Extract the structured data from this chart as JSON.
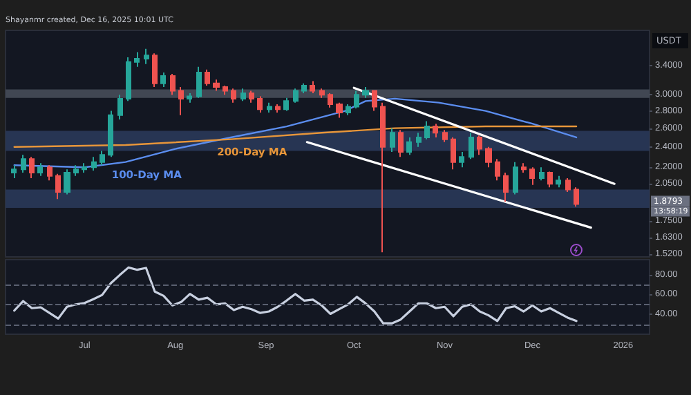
{
  "chart_data": [
    {
      "type": "candlestick",
      "title": "Shayanmr created, Dec 16, 2025 10:01 UTC",
      "ylabel": "USDT",
      "log": "y",
      "grid": false,
      "tick_labels": "y",
      "xlim": [
        "2025-06-04",
        "2026-01-10"
      ],
      "ylim": [
        1.5,
        3.95
      ],
      "yticks": [
        {
          "value": 3.4,
          "label": "3.4000"
        },
        {
          "value": 3.0,
          "label": "3.0000"
        },
        {
          "value": 2.8,
          "label": "2.8000"
        },
        {
          "value": 2.6,
          "label": "2.6000"
        },
        {
          "value": 2.4,
          "label": "2.4000"
        },
        {
          "value": 2.2,
          "label": "2.2000"
        },
        {
          "value": 2.05,
          "label": "2.0500"
        },
        {
          "value": 1.75,
          "label": "1.7500"
        },
        {
          "value": 1.63,
          "label": "1.6300"
        },
        {
          "value": 1.52,
          "label": "1.5200"
        }
      ],
      "x": [
        "2025-06-07",
        "2025-06-10",
        "2025-06-13",
        "2025-06-16",
        "2025-06-19",
        "2025-06-22",
        "2025-06-25",
        "2025-06-28",
        "2025-07-01",
        "2025-07-04",
        "2025-07-07",
        "2025-07-10",
        "2025-07-13",
        "2025-07-16",
        "2025-07-19",
        "2025-07-22",
        "2025-07-25",
        "2025-07-28",
        "2025-07-31",
        "2025-08-03",
        "2025-08-06",
        "2025-08-09",
        "2025-08-12",
        "2025-08-15",
        "2025-08-18",
        "2025-08-21",
        "2025-08-24",
        "2025-08-27",
        "2025-08-30",
        "2025-09-02",
        "2025-09-05",
        "2025-09-08",
        "2025-09-11",
        "2025-09-14",
        "2025-09-17",
        "2025-09-20",
        "2025-09-23",
        "2025-09-26",
        "2025-09-29",
        "2025-10-02",
        "2025-10-05",
        "2025-10-08",
        "2025-10-11",
        "2025-10-14",
        "2025-10-17",
        "2025-10-20",
        "2025-10-23",
        "2025-10-26",
        "2025-10-29",
        "2025-11-01",
        "2025-11-04",
        "2025-11-07",
        "2025-11-10",
        "2025-11-13",
        "2025-11-16",
        "2025-11-19",
        "2025-11-22",
        "2025-11-25",
        "2025-11-28",
        "2025-12-01",
        "2025-12-04",
        "2025-12-07",
        "2025-12-10",
        "2025-12-13",
        "2025-12-16"
      ],
      "ohlc": [
        [
          2.15,
          2.22,
          2.1,
          2.18
        ],
        [
          2.18,
          2.32,
          2.15,
          2.28
        ],
        [
          2.28,
          2.3,
          2.1,
          2.15
        ],
        [
          2.15,
          2.24,
          2.12,
          2.2
        ],
        [
          2.2,
          2.22,
          2.08,
          2.12
        ],
        [
          2.12,
          2.14,
          1.92,
          1.98
        ],
        [
          1.98,
          2.18,
          1.96,
          2.15
        ],
        [
          2.15,
          2.22,
          2.12,
          2.18
        ],
        [
          2.18,
          2.24,
          2.15,
          2.2
        ],
        [
          2.2,
          2.3,
          2.17,
          2.25
        ],
        [
          2.25,
          2.36,
          2.22,
          2.32
        ],
        [
          2.32,
          2.8,
          2.3,
          2.75
        ],
        [
          2.75,
          3.0,
          2.7,
          2.95
        ],
        [
          2.95,
          3.52,
          2.92,
          3.45
        ],
        [
          3.45,
          3.6,
          3.38,
          3.5
        ],
        [
          3.5,
          3.65,
          3.42,
          3.55
        ],
        [
          3.55,
          3.58,
          3.1,
          3.15
        ],
        [
          3.15,
          3.3,
          3.1,
          3.25
        ],
        [
          3.25,
          3.28,
          3.0,
          3.05
        ],
        [
          3.05,
          3.1,
          2.75,
          2.95
        ],
        [
          2.95,
          3.02,
          2.9,
          2.98
        ],
        [
          2.98,
          3.38,
          2.96,
          3.3
        ],
        [
          3.3,
          3.34,
          3.12,
          3.15
        ],
        [
          3.15,
          3.2,
          3.05,
          3.1
        ],
        [
          3.1,
          3.12,
          3.0,
          3.05
        ],
        [
          3.05,
          3.08,
          2.9,
          2.95
        ],
        [
          2.95,
          3.08,
          2.92,
          3.02
        ],
        [
          3.02,
          3.05,
          2.9,
          2.95
        ],
        [
          2.95,
          2.98,
          2.78,
          2.82
        ],
        [
          2.82,
          2.9,
          2.78,
          2.85
        ],
        [
          2.85,
          2.88,
          2.78,
          2.82
        ],
        [
          2.82,
          2.96,
          2.8,
          2.92
        ],
        [
          2.92,
          3.08,
          2.9,
          3.05
        ],
        [
          3.05,
          3.15,
          3.02,
          3.12
        ],
        [
          3.12,
          3.18,
          3.02,
          3.05
        ],
        [
          3.05,
          3.08,
          2.96,
          3.0
        ],
        [
          3.0,
          3.02,
          2.84,
          2.88
        ],
        [
          2.88,
          2.9,
          2.72,
          2.78
        ],
        [
          2.78,
          2.88,
          2.75,
          2.85
        ],
        [
          2.85,
          3.05,
          2.83,
          3.0
        ],
        [
          3.0,
          3.1,
          2.96,
          3.05
        ],
        [
          3.05,
          3.06,
          2.8,
          2.85
        ],
        [
          2.85,
          2.9,
          1.53,
          2.4
        ],
        [
          2.4,
          2.6,
          2.35,
          2.55
        ],
        [
          2.55,
          2.58,
          2.3,
          2.35
        ],
        [
          2.35,
          2.5,
          2.32,
          2.45
        ],
        [
          2.45,
          2.55,
          2.4,
          2.5
        ],
        [
          2.5,
          2.68,
          2.48,
          2.62
        ],
        [
          2.62,
          2.65,
          2.5,
          2.55
        ],
        [
          2.55,
          2.58,
          2.45,
          2.48
        ],
        [
          2.48,
          2.5,
          2.18,
          2.25
        ],
        [
          2.25,
          2.35,
          2.2,
          2.3
        ],
        [
          2.3,
          2.55,
          2.28,
          2.5
        ],
        [
          2.5,
          2.52,
          2.32,
          2.38
        ],
        [
          2.38,
          2.4,
          2.2,
          2.25
        ],
        [
          2.25,
          2.28,
          2.08,
          2.12
        ],
        [
          2.12,
          2.15,
          1.9,
          1.98
        ],
        [
          1.98,
          2.25,
          1.96,
          2.2
        ],
        [
          2.2,
          2.24,
          2.15,
          2.18
        ],
        [
          2.18,
          2.2,
          2.04,
          2.1
        ],
        [
          2.1,
          2.2,
          2.08,
          2.15
        ],
        [
          2.15,
          2.16,
          2.02,
          2.05
        ],
        [
          2.05,
          2.12,
          2.02,
          2.08
        ],
        [
          2.08,
          2.1,
          1.98,
          2.0
        ],
        [
          2.0,
          2.02,
          1.86,
          1.88
        ]
      ],
      "colors": [
        "#26a69a",
        "#26a69a",
        "#ef5350",
        "#26a69a",
        "#ef5350",
        "#ef5350",
        "#26a69a",
        "#26a69a",
        "#26a69a",
        "#26a69a",
        "#26a69a",
        "#26a69a",
        "#26a69a",
        "#26a69a",
        "#26a69a",
        "#26a69a",
        "#ef5350",
        "#26a69a",
        "#ef5350",
        "#ef5350",
        "#26a69a",
        "#26a69a",
        "#ef5350",
        "#ef5350",
        "#ef5350",
        "#ef5350",
        "#26a69a",
        "#ef5350",
        "#ef5350",
        "#26a69a",
        "#ef5350",
        "#26a69a",
        "#26a69a",
        "#26a69a",
        "#ef5350",
        "#ef5350",
        "#ef5350",
        "#ef5350",
        "#26a69a",
        "#26a69a",
        "#26a69a",
        "#ef5350",
        "#ef5350",
        "#26a69a",
        "#ef5350",
        "#26a69a",
        "#26a69a",
        "#26a69a",
        "#ef5350",
        "#ef5350",
        "#ef5350",
        "#26a69a",
        "#26a69a",
        "#ef5350",
        "#ef5350",
        "#ef5350",
        "#ef5350",
        "#26a69a",
        "#ef5350",
        "#ef5350",
        "#26a69a",
        "#ef5350",
        "#26a69a",
        "#ef5350",
        "#ef5350"
      ],
      "series": [
        {
          "name": "100-Day MA",
          "type": "line",
          "color": "#5b8def",
          "x": [
            "2025-06-07",
            "2025-07-01",
            "2025-07-15",
            "2025-08-01",
            "2025-08-20",
            "2025-09-08",
            "2025-09-28",
            "2025-10-05",
            "2025-10-15",
            "2025-10-30",
            "2025-11-15",
            "2025-12-01",
            "2025-12-16"
          ],
          "values": [
            2.22,
            2.2,
            2.25,
            2.38,
            2.5,
            2.62,
            2.8,
            2.92,
            2.95,
            2.9,
            2.8,
            2.65,
            2.5
          ]
        },
        {
          "name": "200-Day MA",
          "type": "line",
          "color": "#e8963a",
          "x": [
            "2025-06-07",
            "2025-07-15",
            "2025-08-20",
            "2025-09-20",
            "2025-10-15",
            "2025-11-15",
            "2025-12-16"
          ],
          "values": [
            2.4,
            2.42,
            2.48,
            2.55,
            2.6,
            2.62,
            2.62
          ]
        },
        {
          "type": "line",
          "color": "#ffffff",
          "x": [
            "2025-10-01",
            "2025-12-29"
          ],
          "values": [
            3.09,
            2.05
          ]
        },
        {
          "type": "line",
          "color": "#ffffff",
          "x": [
            "2025-09-15",
            "2025-12-21"
          ],
          "values": [
            2.45,
            1.7
          ]
        }
      ],
      "bands": [
        {
          "axis": "y",
          "from": 2.96,
          "to": 3.07,
          "color": "#4a505c"
        },
        {
          "axis": "y",
          "from": 2.36,
          "to": 2.57,
          "color": "#2c3b5c"
        },
        {
          "axis": "y",
          "from": 1.85,
          "to": 2.0,
          "color": "#2c3b5c"
        }
      ],
      "annotations": [
        "1.8793",
        "13:58:19"
      ]
    },
    {
      "type": "line",
      "grid": false,
      "line_style": "solid",
      "xlim": [
        "2025-06-04",
        "2026-01-10"
      ],
      "ylim": [
        20,
        95
      ],
      "yticks": [
        {
          "value": 40,
          "label": "40.00"
        },
        {
          "value": 60,
          "label": "60.00"
        },
        {
          "value": 80,
          "label": "80.00"
        }
      ],
      "xticks": [
        {
          "value": "2025-07-01",
          "label": "Jul"
        },
        {
          "value": "2025-08-01",
          "label": "Aug"
        },
        {
          "value": "2025-09-01",
          "label": "Sep"
        },
        {
          "value": "2025-10-01",
          "label": "Oct"
        },
        {
          "value": "2025-11-01",
          "label": "Nov"
        },
        {
          "value": "2025-12-01",
          "label": "Dec"
        },
        {
          "value": "2026-01-01",
          "label": "2026"
        }
      ],
      "ref_lines": [
        {
          "axis": "y",
          "value": 70,
          "color": "#5a6070",
          "line_style": "dashed"
        },
        {
          "axis": "y",
          "value": 50,
          "color": "#5a6070",
          "line_style": "dashed"
        },
        {
          "axis": "y",
          "value": 30,
          "color": "#5a6070",
          "line_style": "dashed"
        }
      ],
      "x": [
        "2025-06-07",
        "2025-06-10",
        "2025-06-13",
        "2025-06-16",
        "2025-06-19",
        "2025-06-22",
        "2025-06-25",
        "2025-06-28",
        "2025-07-01",
        "2025-07-04",
        "2025-07-07",
        "2025-07-10",
        "2025-07-13",
        "2025-07-16",
        "2025-07-19",
        "2025-07-22",
        "2025-07-25",
        "2025-07-28",
        "2025-07-31",
        "2025-08-03",
        "2025-08-06",
        "2025-08-09",
        "2025-08-12",
        "2025-08-15",
        "2025-08-18",
        "2025-08-21",
        "2025-08-24",
        "2025-08-27",
        "2025-08-30",
        "2025-09-02",
        "2025-09-05",
        "2025-09-08",
        "2025-09-11",
        "2025-09-14",
        "2025-09-17",
        "2025-09-20",
        "2025-09-23",
        "2025-09-26",
        "2025-09-29",
        "2025-10-02",
        "2025-10-05",
        "2025-10-08",
        "2025-10-11",
        "2025-10-14",
        "2025-10-17",
        "2025-10-20",
        "2025-10-23",
        "2025-10-26",
        "2025-10-29",
        "2025-11-01",
        "2025-11-04",
        "2025-11-07",
        "2025-11-10",
        "2025-11-13",
        "2025-11-16",
        "2025-11-19",
        "2025-11-22",
        "2025-11-25",
        "2025-11-28",
        "2025-12-01",
        "2025-12-04",
        "2025-12-07",
        "2025-12-10",
        "2025-12-13",
        "2025-12-16"
      ],
      "series": [
        {
          "color": "#c8d0e0",
          "values": [
            43.8,
            53.3,
            46.2,
            47.1,
            41.4,
            35.7,
            47.6,
            50,
            51.4,
            55.2,
            59.5,
            71.4,
            79.5,
            87.1,
            84.8,
            86.7,
            62.9,
            58.6,
            49,
            52.4,
            60.5,
            54.8,
            56.7,
            50,
            51,
            44.3,
            47.6,
            45.2,
            41.4,
            42.9,
            47.6,
            53.8,
            60.5,
            53.8,
            54.8,
            49,
            40.5,
            45.2,
            50,
            57.6,
            51,
            42.9,
            31,
            31,
            34.8,
            42.9,
            51,
            51,
            46.2,
            47.6,
            38.1,
            47.6,
            50,
            42.9,
            39,
            33.3,
            46.2,
            48.1,
            42.9,
            49,
            42.9,
            46.2,
            41.4,
            36.7,
            33.3
          ]
        }
      ]
    }
  ]
}
